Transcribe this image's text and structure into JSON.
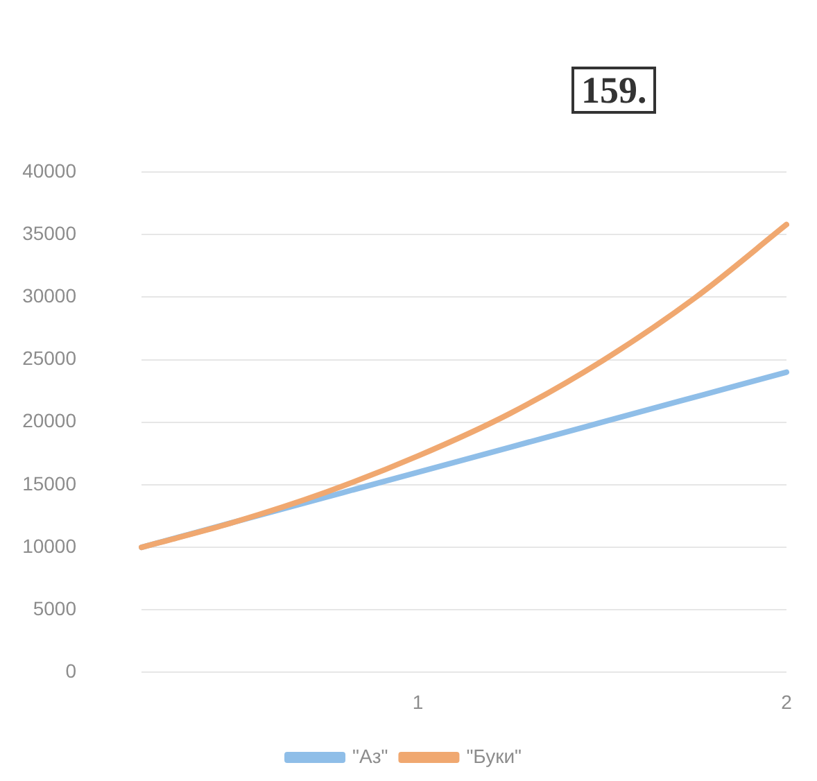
{
  "chart_data": {
    "type": "line",
    "categories": [
      null,
      null,
      null,
      "1",
      null,
      null,
      null,
      "2"
    ],
    "series": [
      {
        "name": "\"Аз\"",
        "color": "#8fbee8",
        "values": [
          10000,
          12000,
          14000,
          16000,
          18000,
          20000,
          22000,
          24000
        ]
      },
      {
        "name": "\"Буки\"",
        "color": "#f0a870",
        "values": [
          10000,
          12000,
          14400,
          17300,
          20700,
          24900,
          29900,
          35800
        ]
      }
    ],
    "ylim": [
      0,
      40000
    ],
    "yticks": [
      0,
      5000,
      10000,
      15000,
      20000,
      25000,
      30000,
      35000,
      40000
    ],
    "grid": "y",
    "legend": "bottom",
    "marker": "none",
    "annotations": [
      "159."
    ]
  }
}
